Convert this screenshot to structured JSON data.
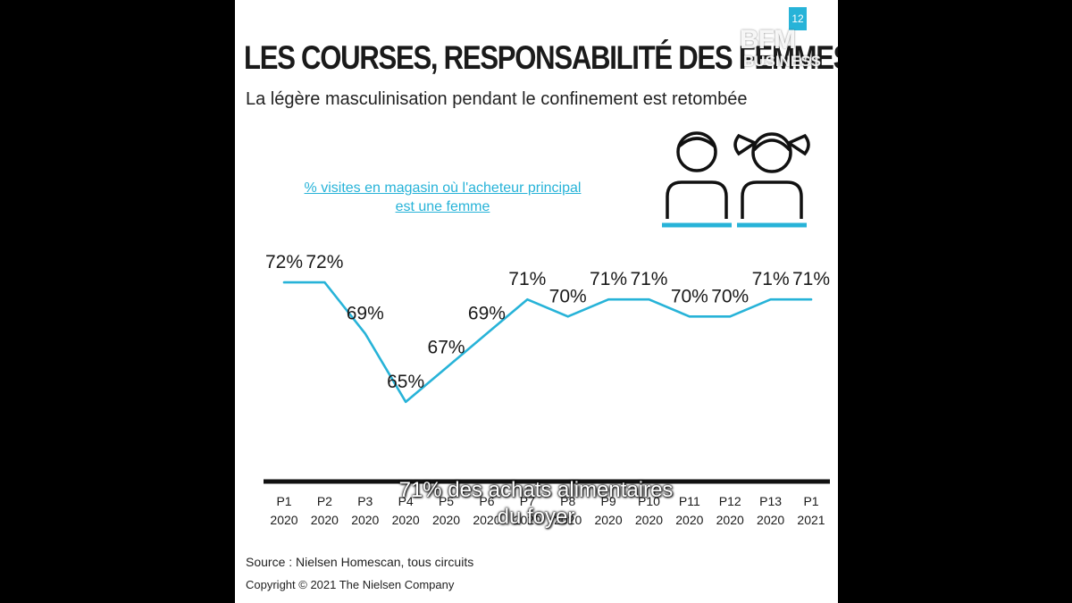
{
  "header": {
    "title": "LES COURSES, RESPONSABILITÉ DES FEMMES",
    "subtitle": "La légère masculinisation pendant le confinement est retombée"
  },
  "chart_data": {
    "type": "line",
    "title": "LES COURSES, RESPONSABILITÉ DES FEMMES",
    "subtitle": "La légère masculinisation pendant le confinement est retombée",
    "series_label_lines": [
      "% visites en magasin où l'acheteur principal",
      "est une femme"
    ],
    "categories": [
      [
        "P1",
        "2020"
      ],
      [
        "P2",
        "2020"
      ],
      [
        "P3",
        "2020"
      ],
      [
        "P4",
        "2020"
      ],
      [
        "P5",
        "2020"
      ],
      [
        "P6",
        "2020"
      ],
      [
        "P7",
        "2020"
      ],
      [
        "P8",
        "2020"
      ],
      [
        "P9",
        "2020"
      ],
      [
        "P10",
        "2020"
      ],
      [
        "P11",
        "2020"
      ],
      [
        "P12",
        "2020"
      ],
      [
        "P13",
        "2020"
      ],
      [
        "P1",
        "2021"
      ]
    ],
    "series": [
      {
        "values": [
          72,
          72,
          69,
          65,
          67,
          69,
          71,
          70,
          71,
          71,
          70,
          70,
          71,
          71
        ],
        "labels": [
          "72%",
          "72%",
          "69%",
          "65%",
          "67%",
          "69%",
          "71%",
          "70%",
          "71%",
          "71%",
          "70%",
          "70%",
          "71%",
          "71%"
        ],
        "color": "#27b3d8"
      }
    ],
    "ylim": [
      64,
      73
    ],
    "grid": false,
    "axis_color": "#111111"
  },
  "footer": {
    "source": "Source : Nielsen Homescan, tous circuits",
    "copyright": "Copyright © 2021 The Nielsen Company"
  },
  "overlay": {
    "logo_line1": "BFM",
    "logo_line2": "BUSINESS",
    "corner_mark": "12",
    "caption_line1": "71% des achats alimentaires",
    "caption_line2": "du foyer"
  },
  "colors": {
    "accent": "#27b3d8",
    "text": "#1a1a1a",
    "background": "#ffffff",
    "letterbox": "#000000"
  },
  "icons": [
    "man-icon",
    "woman-icon"
  ]
}
